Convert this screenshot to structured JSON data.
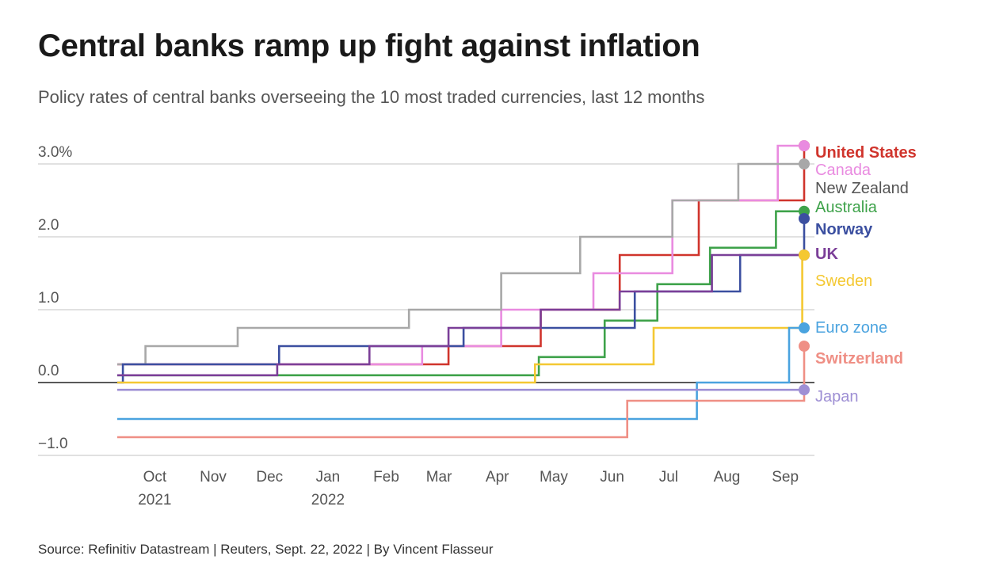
{
  "title": "Central banks ramp up fight against inflation",
  "subtitle": "Policy rates of central banks overseeing the 10 most traded currencies, last 12 months",
  "source": "Source: Refinitiv Datastream | Reuters, Sept. 22, 2022 | By Vincent Flasseur",
  "chart_data": {
    "type": "line",
    "step": true,
    "x_start": "2021-09-22",
    "x_end": "2022-09-22",
    "ylim": [
      -1.0,
      3.25
    ],
    "y_ticks": [
      {
        "value": 3.0,
        "label": "3.0%"
      },
      {
        "value": 2.0,
        "label": "2.0"
      },
      {
        "value": 1.0,
        "label": "1.0"
      },
      {
        "value": 0.0,
        "label": "0.0"
      },
      {
        "value": -1.0,
        "label": "−1.0"
      }
    ],
    "x_ticks": [
      {
        "date": "2021-10-01",
        "label": "Oct",
        "sublabel": "2021"
      },
      {
        "date": "2021-11-01",
        "label": "Nov",
        "sublabel": ""
      },
      {
        "date": "2021-12-01",
        "label": "Dec",
        "sublabel": ""
      },
      {
        "date": "2022-01-01",
        "label": "Jan",
        "sublabel": "2022"
      },
      {
        "date": "2022-02-01",
        "label": "Feb",
        "sublabel": ""
      },
      {
        "date": "2022-03-01",
        "label": "Mar",
        "sublabel": ""
      },
      {
        "date": "2022-04-01",
        "label": "Apr",
        "sublabel": ""
      },
      {
        "date": "2022-05-01",
        "label": "May",
        "sublabel": ""
      },
      {
        "date": "2022-06-01",
        "label": "Jun",
        "sublabel": ""
      },
      {
        "date": "2022-07-01",
        "label": "Jul",
        "sublabel": ""
      },
      {
        "date": "2022-08-01",
        "label": "Aug",
        "sublabel": ""
      },
      {
        "date": "2022-09-01",
        "label": "Sep",
        "sublabel": ""
      }
    ],
    "grid": true,
    "series": [
      {
        "name": "United States",
        "color": "#d0342c",
        "bold": true,
        "points": [
          [
            "2021-09-22",
            0.25
          ],
          [
            "2022-03-17",
            0.5
          ],
          [
            "2022-05-05",
            1.0
          ],
          [
            "2022-06-16",
            1.75
          ],
          [
            "2022-07-28",
            2.5
          ],
          [
            "2022-09-22",
            3.25
          ]
        ]
      },
      {
        "name": "Canada",
        "color": "#e98be0",
        "bold": false,
        "points": [
          [
            "2021-09-22",
            0.25
          ],
          [
            "2022-03-03",
            0.5
          ],
          [
            "2022-04-14",
            1.0
          ],
          [
            "2022-06-02",
            1.5
          ],
          [
            "2022-07-14",
            2.5
          ],
          [
            "2022-09-08",
            3.25
          ]
        ]
      },
      {
        "name": "New Zealand",
        "color": "#a8a8a8",
        "bold": false,
        "points": [
          [
            "2021-09-22",
            0.25
          ],
          [
            "2021-10-07",
            0.5
          ],
          [
            "2021-11-25",
            0.75
          ],
          [
            "2022-02-24",
            1.0
          ],
          [
            "2022-04-14",
            1.5
          ],
          [
            "2022-05-26",
            2.0
          ],
          [
            "2022-07-14",
            2.5
          ],
          [
            "2022-08-18",
            3.0
          ]
        ]
      },
      {
        "name": "Australia",
        "color": "#3ea24a",
        "bold": false,
        "points": [
          [
            "2021-09-22",
            0.1
          ],
          [
            "2022-05-04",
            0.35
          ],
          [
            "2022-06-08",
            0.85
          ],
          [
            "2022-07-06",
            1.35
          ],
          [
            "2022-08-03",
            1.85
          ],
          [
            "2022-09-07",
            2.35
          ]
        ]
      },
      {
        "name": "Norway",
        "color": "#3b4fa0",
        "bold": true,
        "points": [
          [
            "2021-09-22",
            0.0
          ],
          [
            "2021-09-25",
            0.25
          ],
          [
            "2021-12-17",
            0.5
          ],
          [
            "2022-03-25",
            0.75
          ],
          [
            "2022-06-24",
            1.25
          ],
          [
            "2022-08-19",
            1.75
          ],
          [
            "2022-09-22",
            2.25
          ]
        ]
      },
      {
        "name": "UK",
        "color": "#7b3f98",
        "bold": true,
        "points": [
          [
            "2021-09-22",
            0.1
          ],
          [
            "2021-12-16",
            0.25
          ],
          [
            "2022-02-03",
            0.5
          ],
          [
            "2022-03-17",
            0.75
          ],
          [
            "2022-05-05",
            1.0
          ],
          [
            "2022-06-16",
            1.25
          ],
          [
            "2022-08-04",
            1.75
          ]
        ]
      },
      {
        "name": "Sweden",
        "color": "#f4c832",
        "bold": false,
        "points": [
          [
            "2021-09-22",
            0.0
          ],
          [
            "2022-05-02",
            0.25
          ],
          [
            "2022-07-04",
            0.75
          ],
          [
            "2022-09-21",
            1.75
          ]
        ]
      },
      {
        "name": "Euro zone",
        "color": "#4aa3df",
        "bold": false,
        "points": [
          [
            "2021-09-22",
            -0.5
          ],
          [
            "2022-07-27",
            0.0
          ],
          [
            "2022-09-14",
            0.75
          ]
        ]
      },
      {
        "name": "Switzerland",
        "color": "#ef8f85",
        "bold": true,
        "points": [
          [
            "2021-09-22",
            -0.75
          ],
          [
            "2022-06-20",
            -0.25
          ],
          [
            "2022-09-22",
            0.5
          ]
        ]
      },
      {
        "name": "Japan",
        "color": "#9e8fd4",
        "bold": false,
        "points": [
          [
            "2021-09-22",
            -0.1
          ]
        ]
      }
    ]
  }
}
